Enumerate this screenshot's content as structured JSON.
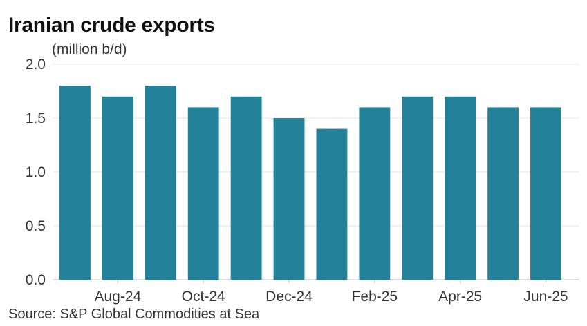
{
  "title": "Iranian crude exports",
  "source": "Source: S&P Global Commodities at Sea",
  "colors": {
    "bar": "#24819a",
    "grid": "#e3e3e3",
    "axis": "#bdbdbd"
  },
  "chart_data": {
    "type": "bar",
    "title": "Iranian crude exports",
    "ylabel": "(million b/d)",
    "xlabel": "",
    "ylim": [
      0,
      2.0
    ],
    "yticks": [
      "0.0",
      "0.5",
      "1.0",
      "1.5",
      "2.0"
    ],
    "ytick_values": [
      0,
      0.5,
      1.0,
      1.5,
      2.0
    ],
    "categories": [
      "Jul-24",
      "Aug-24",
      "Sep-24",
      "Oct-24",
      "Nov-24",
      "Dec-24",
      "Jan-25",
      "Feb-25",
      "Mar-25",
      "Apr-25",
      "May-25",
      "Jun-25"
    ],
    "xtick_labels": [
      "",
      "Aug-24",
      "",
      "Oct-24",
      "",
      "Dec-24",
      "",
      "Feb-25",
      "",
      "Apr-25",
      "",
      "Jun-25"
    ],
    "values": [
      1.8,
      1.7,
      1.8,
      1.6,
      1.7,
      1.5,
      1.4,
      1.6,
      1.7,
      1.7,
      1.6,
      1.6
    ],
    "grid": true
  }
}
